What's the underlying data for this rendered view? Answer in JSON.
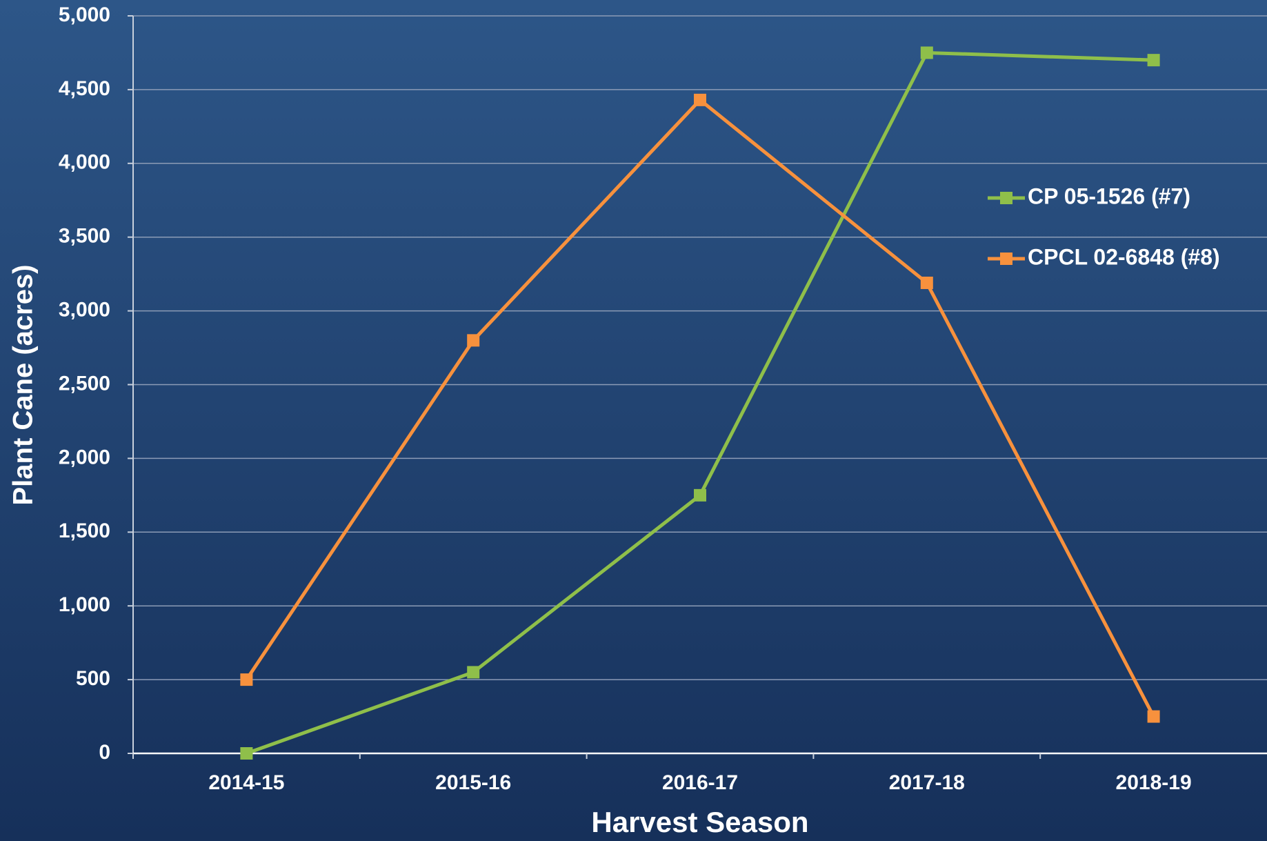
{
  "chart_data": {
    "type": "line",
    "xlabel": "Harvest Season",
    "ylabel": "Plant Cane (acres)",
    "categories": [
      "2014-15",
      "2015-16",
      "2016-17",
      "2017-18",
      "2018-19"
    ],
    "series": [
      {
        "name": "CP 05-1526 (#7)",
        "color": "#8fbf4a",
        "values": [
          0,
          550,
          1750,
          4750,
          4700
        ]
      },
      {
        "name": "CPCL 02-6848 (#8)",
        "color": "#f7913d",
        "values": [
          500,
          2800,
          4430,
          3190,
          250
        ]
      }
    ],
    "ylim": [
      0,
      5000
    ],
    "yticks": [
      0,
      500,
      {
        "value": 1000,
        "label": "1,000"
      },
      {
        "value": 1500,
        "label": "1,500"
      },
      {
        "value": 2000,
        "label": "2,000"
      },
      {
        "value": 2500,
        "label": "2,500"
      },
      {
        "value": 3000,
        "label": "3,000"
      },
      {
        "value": 3500,
        "label": "3,500"
      },
      {
        "value": 4000,
        "label": "4,000"
      },
      {
        "value": 4500,
        "label": "4,500"
      },
      {
        "value": 5000,
        "label": "5,000"
      }
    ],
    "grid": true,
    "legend": "right"
  }
}
